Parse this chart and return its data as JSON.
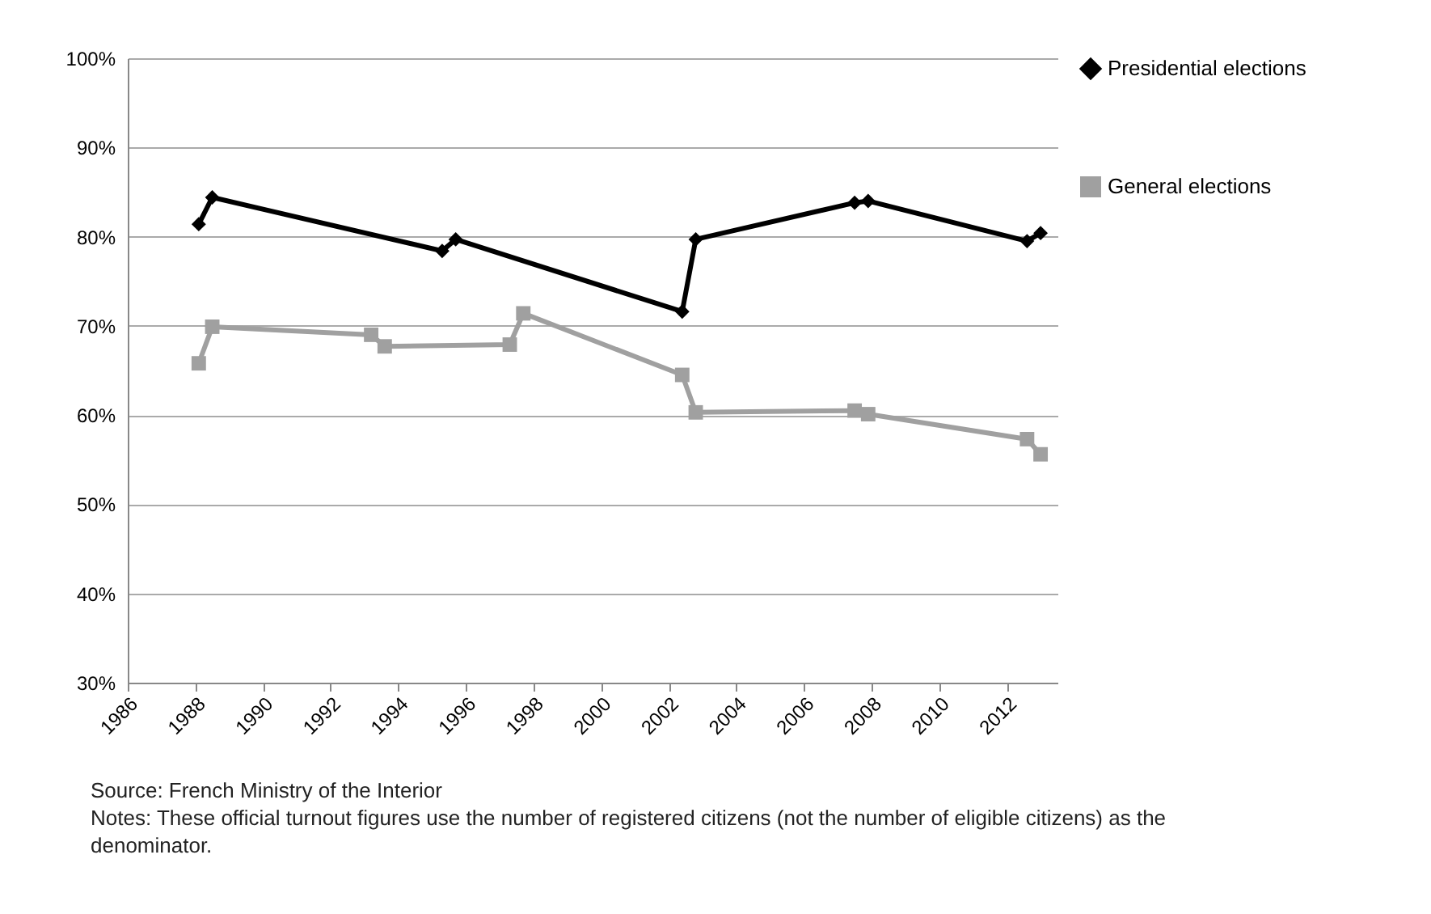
{
  "chart_data": {
    "type": "line",
    "legend": "right",
    "grid": "y",
    "line_style": "solid",
    "xlim": [
      1986,
      2013.5
    ],
    "xticks": [
      1986,
      1988,
      1990,
      1992,
      1994,
      1996,
      1998,
      2000,
      2002,
      2004,
      2006,
      2008,
      2010,
      2012
    ],
    "ylim": [
      30,
      100
    ],
    "yticks": [
      {
        "value": 30,
        "label": "30%"
      },
      {
        "value": 40,
        "label": "40%"
      },
      {
        "value": 50,
        "label": "50%"
      },
      {
        "value": 60,
        "label": "60%"
      },
      {
        "value": 70,
        "label": "70%"
      },
      {
        "value": 80,
        "label": "80%"
      },
      {
        "value": 90,
        "label": "90%"
      },
      {
        "value": 100,
        "label": "100%"
      }
    ],
    "series": [
      {
        "name": "Presidential elections",
        "color": "#000000",
        "marker": "diamond",
        "x": [
          1988.1,
          1988.5,
          1995.3,
          1995.7,
          2002.4,
          2002.8,
          2007.5,
          2007.9,
          2012.6,
          2013.0
        ],
        "values": [
          81.4,
          84.4,
          78.4,
          79.7,
          71.6,
          79.7,
          83.8,
          84.0,
          79.5,
          80.4
        ]
      },
      {
        "name": "General elections",
        "color": "#a0a0a0",
        "marker": "square",
        "x": [
          1988.1,
          1988.5,
          1993.2,
          1993.6,
          1997.3,
          1997.7,
          2002.4,
          2002.8,
          2007.5,
          2007.9,
          2012.6,
          2013.0
        ],
        "values": [
          65.8,
          69.9,
          69.0,
          67.7,
          67.9,
          71.4,
          64.5,
          60.3,
          60.5,
          60.1,
          57.3,
          55.6
        ]
      }
    ],
    "annotations": [
      "Source: French Ministry of the Interior",
      "Notes: These official turnout figures use the number of registered citizens (not the number of eligible citizens) as the denominator."
    ]
  }
}
